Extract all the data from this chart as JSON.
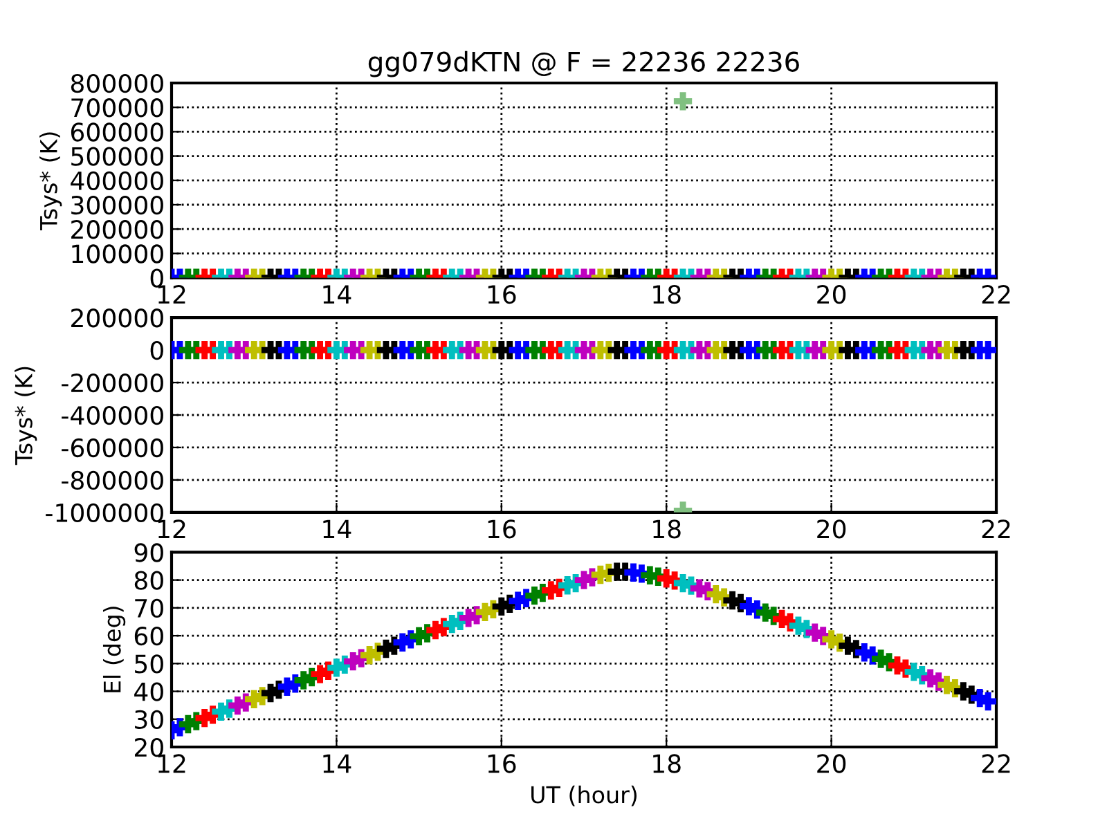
{
  "chart_data": [
    {
      "type": "scatter",
      "title": "gg079dKTN @ F = 22236 22236",
      "ylabel": "Tsys* (K)",
      "xlim": [
        12,
        22
      ],
      "xticks": [
        12,
        14,
        16,
        18,
        20,
        22
      ],
      "ylim": [
        0,
        800000
      ],
      "yticks": [
        0,
        100000,
        200000,
        300000,
        400000,
        500000,
        600000,
        700000,
        800000
      ],
      "grid": true,
      "marker": "cross",
      "series": [
        {
          "x": [
            12.0,
            12.1,
            12.2,
            12.3,
            12.4,
            12.5,
            12.6,
            12.7,
            12.8,
            12.9,
            13.0,
            13.1,
            13.2,
            13.3,
            13.4,
            13.5,
            13.6,
            13.7,
            13.8,
            13.9,
            14.0,
            14.1,
            14.2,
            14.3,
            14.4,
            14.5,
            14.6,
            14.7,
            14.8,
            14.9,
            15.0,
            15.1,
            15.2,
            15.3,
            15.4,
            15.5,
            15.6,
            15.7,
            15.8,
            15.9,
            16.0,
            16.1,
            16.2,
            16.3,
            16.4,
            16.5,
            16.6,
            16.7,
            16.8,
            16.9,
            17.0,
            17.1,
            17.2,
            17.3,
            17.4,
            17.5,
            17.6,
            17.7,
            17.8,
            17.9,
            18.0,
            18.1,
            18.2,
            18.3,
            18.4,
            18.5,
            18.6,
            18.7,
            18.8,
            18.9,
            19.0,
            19.1,
            19.2,
            19.3,
            19.4,
            19.5,
            19.6,
            19.7,
            19.8,
            19.9,
            20.0,
            20.1,
            20.2,
            20.3,
            20.4,
            20.5,
            20.6,
            20.7,
            20.8,
            20.9,
            21.0,
            21.1,
            21.2,
            21.3,
            21.4,
            21.5,
            21.6,
            21.7,
            21.8,
            21.9
          ],
          "values": [
            0,
            0,
            0,
            0,
            0,
            0,
            0,
            0,
            0,
            0,
            0,
            0,
            0,
            0,
            0,
            0,
            0,
            0,
            0,
            0,
            0,
            0,
            0,
            0,
            0,
            0,
            0,
            0,
            0,
            0,
            0,
            0,
            0,
            0,
            0,
            0,
            0,
            0,
            0,
            0,
            0,
            0,
            0,
            0,
            0,
            0,
            0,
            0,
            0,
            0,
            0,
            0,
            0,
            0,
            0,
            0,
            0,
            0,
            0,
            0,
            0,
            0,
            0,
            0,
            0,
            0,
            0,
            0,
            0,
            0,
            0,
            0,
            0,
            0,
            0,
            0,
            0,
            0,
            0,
            0,
            0,
            0,
            0,
            0,
            0,
            0,
            0,
            0,
            0,
            0,
            0,
            0,
            0,
            0,
            0,
            0,
            0,
            0,
            0,
            0
          ],
          "colors": [
            "#0000ff",
            "#0000ff",
            "#008000",
            "#008000",
            "#ff0000",
            "#ff0000",
            "#00bfbf",
            "#00bfbf",
            "#bf00bf",
            "#bf00bf",
            "#bfbf00",
            "#bfbf00",
            "#000000",
            "#000000",
            "#0000ff",
            "#0000ff",
            "#008000",
            "#008000",
            "#ff0000",
            "#ff0000",
            "#00bfbf",
            "#00bfbf",
            "#bf00bf",
            "#bf00bf",
            "#bfbf00",
            "#bfbf00",
            "#000000",
            "#000000",
            "#0000ff",
            "#0000ff",
            "#008000",
            "#008000",
            "#ff0000",
            "#ff0000",
            "#00bfbf",
            "#00bfbf",
            "#bf00bf",
            "#bf00bf",
            "#bfbf00",
            "#bfbf00",
            "#000000",
            "#000000",
            "#0000ff",
            "#0000ff",
            "#008000",
            "#008000",
            "#ff0000",
            "#ff0000",
            "#00bfbf",
            "#00bfbf",
            "#bf00bf",
            "#bf00bf",
            "#bfbf00",
            "#bfbf00",
            "#000000",
            "#000000",
            "#0000ff",
            "#0000ff",
            "#008000",
            "#008000",
            "#ff0000",
            "#ff0000",
            "#00bfbf",
            "#00bfbf",
            "#bf00bf",
            "#bf00bf",
            "#bfbf00",
            "#bfbf00",
            "#000000",
            "#000000",
            "#0000ff",
            "#0000ff",
            "#008000",
            "#008000",
            "#ff0000",
            "#ff0000",
            "#00bfbf",
            "#00bfbf",
            "#bf00bf",
            "#bf00bf",
            "#bfbf00",
            "#bfbf00",
            "#000000",
            "#000000",
            "#0000ff",
            "#0000ff",
            "#008000",
            "#008000",
            "#ff0000",
            "#ff0000",
            "#00bfbf",
            "#00bfbf",
            "#bf00bf",
            "#bf00bf",
            "#bfbf00",
            "#bfbf00",
            "#000000",
            "#000000",
            "#0000ff",
            "#0000ff"
          ]
        },
        {
          "x": [
            18.2
          ],
          "values": [
            725000
          ],
          "color": "#80c080"
        }
      ]
    },
    {
      "type": "scatter",
      "ylabel": "Tsys* (K)",
      "xlim": [
        12,
        22
      ],
      "xticks": [
        12,
        14,
        16,
        18,
        20,
        22
      ],
      "ylim": [
        -1000000,
        200000
      ],
      "yticks": [
        -1000000,
        -800000,
        -600000,
        -400000,
        -200000,
        0,
        200000
      ],
      "grid": true,
      "marker": "cross",
      "series": [
        {
          "x": [
            12.0,
            12.1,
            12.2,
            12.3,
            12.4,
            12.5,
            12.6,
            12.7,
            12.8,
            12.9,
            13.0,
            13.1,
            13.2,
            13.3,
            13.4,
            13.5,
            13.6,
            13.7,
            13.8,
            13.9,
            14.0,
            14.1,
            14.2,
            14.3,
            14.4,
            14.5,
            14.6,
            14.7,
            14.8,
            14.9,
            15.0,
            15.1,
            15.2,
            15.3,
            15.4,
            15.5,
            15.6,
            15.7,
            15.8,
            15.9,
            16.0,
            16.1,
            16.2,
            16.3,
            16.4,
            16.5,
            16.6,
            16.7,
            16.8,
            16.9,
            17.0,
            17.1,
            17.2,
            17.3,
            17.4,
            17.5,
            17.6,
            17.7,
            17.8,
            17.9,
            18.0,
            18.1,
            18.2,
            18.3,
            18.4,
            18.5,
            18.6,
            18.7,
            18.8,
            18.9,
            19.0,
            19.1,
            19.2,
            19.3,
            19.4,
            19.5,
            19.6,
            19.7,
            19.8,
            19.9,
            20.0,
            20.1,
            20.2,
            20.3,
            20.4,
            20.5,
            20.6,
            20.7,
            20.8,
            20.9,
            21.0,
            21.1,
            21.2,
            21.3,
            21.4,
            21.5,
            21.6,
            21.7,
            21.8,
            21.9
          ],
          "values": [
            0,
            0,
            0,
            0,
            0,
            0,
            0,
            0,
            0,
            0,
            0,
            0,
            0,
            0,
            0,
            0,
            0,
            0,
            0,
            0,
            0,
            0,
            0,
            0,
            0,
            0,
            0,
            0,
            0,
            0,
            0,
            0,
            0,
            0,
            0,
            0,
            0,
            0,
            0,
            0,
            0,
            0,
            0,
            0,
            0,
            0,
            0,
            0,
            0,
            0,
            0,
            0,
            0,
            0,
            0,
            0,
            0,
            0,
            0,
            0,
            0,
            0,
            0,
            0,
            0,
            0,
            0,
            0,
            0,
            0,
            0,
            0,
            0,
            0,
            0,
            0,
            0,
            0,
            0,
            0,
            0,
            0,
            0,
            0,
            0,
            0,
            0,
            0,
            0,
            0,
            0,
            0,
            0,
            0,
            0,
            0,
            0,
            0,
            0,
            0
          ],
          "colors": [
            "#0000ff",
            "#0000ff",
            "#008000",
            "#008000",
            "#ff0000",
            "#ff0000",
            "#00bfbf",
            "#00bfbf",
            "#bf00bf",
            "#bf00bf",
            "#bfbf00",
            "#bfbf00",
            "#000000",
            "#000000",
            "#0000ff",
            "#0000ff",
            "#008000",
            "#008000",
            "#ff0000",
            "#ff0000",
            "#00bfbf",
            "#00bfbf",
            "#bf00bf",
            "#bf00bf",
            "#bfbf00",
            "#bfbf00",
            "#000000",
            "#000000",
            "#0000ff",
            "#0000ff",
            "#008000",
            "#008000",
            "#ff0000",
            "#ff0000",
            "#00bfbf",
            "#00bfbf",
            "#bf00bf",
            "#bf00bf",
            "#bfbf00",
            "#bfbf00",
            "#000000",
            "#000000",
            "#0000ff",
            "#0000ff",
            "#008000",
            "#008000",
            "#ff0000",
            "#ff0000",
            "#00bfbf",
            "#00bfbf",
            "#bf00bf",
            "#bf00bf",
            "#bfbf00",
            "#bfbf00",
            "#000000",
            "#000000",
            "#0000ff",
            "#0000ff",
            "#008000",
            "#008000",
            "#ff0000",
            "#ff0000",
            "#00bfbf",
            "#00bfbf",
            "#bf00bf",
            "#bf00bf",
            "#bfbf00",
            "#bfbf00",
            "#000000",
            "#000000",
            "#0000ff",
            "#0000ff",
            "#008000",
            "#008000",
            "#ff0000",
            "#ff0000",
            "#00bfbf",
            "#00bfbf",
            "#bf00bf",
            "#bf00bf",
            "#bfbf00",
            "#bfbf00",
            "#000000",
            "#000000",
            "#0000ff",
            "#0000ff",
            "#008000",
            "#008000",
            "#ff0000",
            "#ff0000",
            "#00bfbf",
            "#00bfbf",
            "#bf00bf",
            "#bf00bf",
            "#bfbf00",
            "#bfbf00",
            "#000000",
            "#000000",
            "#0000ff",
            "#0000ff"
          ]
        },
        {
          "x": [
            18.2
          ],
          "values": [
            -990000
          ],
          "color": "#80c080"
        }
      ]
    },
    {
      "type": "scatter",
      "xlabel": "UT (hour)",
      "ylabel": "El (deg)",
      "xlim": [
        12,
        22
      ],
      "xticks": [
        12,
        14,
        16,
        18,
        20,
        22
      ],
      "ylim": [
        20,
        90
      ],
      "yticks": [
        20,
        30,
        40,
        50,
        60,
        70,
        80,
        90
      ],
      "grid": true,
      "marker": "cross",
      "series": [
        {
          "x": [
            12.0,
            12.1,
            12.2,
            12.3,
            12.4,
            12.5,
            12.6,
            12.7,
            12.8,
            12.9,
            13.0,
            13.1,
            13.2,
            13.3,
            13.4,
            13.5,
            13.6,
            13.7,
            13.8,
            13.9,
            14.0,
            14.1,
            14.2,
            14.3,
            14.4,
            14.5,
            14.6,
            14.7,
            14.8,
            14.9,
            15.0,
            15.1,
            15.2,
            15.3,
            15.4,
            15.5,
            15.6,
            15.7,
            15.8,
            15.9,
            16.0,
            16.1,
            16.2,
            16.3,
            16.4,
            16.5,
            16.6,
            16.7,
            16.8,
            16.9,
            17.0,
            17.1,
            17.2,
            17.3,
            17.4,
            17.5,
            17.6,
            17.7,
            17.8,
            17.9,
            18.0,
            18.1,
            18.2,
            18.3,
            18.4,
            18.5,
            18.6,
            18.7,
            18.8,
            18.9,
            19.0,
            19.1,
            19.2,
            19.3,
            19.4,
            19.5,
            19.6,
            19.7,
            19.8,
            19.9,
            20.0,
            20.1,
            20.2,
            20.3,
            20.4,
            20.5,
            20.6,
            20.7,
            20.8,
            20.9,
            21.0,
            21.1,
            21.2,
            21.3,
            21.4,
            21.5,
            21.6,
            21.7,
            21.8,
            21.9
          ],
          "values": [
            26.0,
            27.1,
            28.2,
            29.3,
            30.4,
            31.6,
            32.7,
            33.8,
            34.9,
            36.0,
            37.2,
            38.3,
            39.4,
            40.6,
            41.7,
            42.8,
            44.0,
            45.1,
            46.2,
            47.4,
            48.5,
            49.6,
            50.8,
            51.9,
            53.0,
            54.2,
            55.3,
            56.4,
            57.6,
            58.7,
            59.8,
            60.9,
            62.0,
            63.1,
            64.2,
            65.3,
            66.4,
            67.4,
            68.5,
            69.5,
            70.5,
            71.5,
            72.5,
            73.5,
            74.4,
            75.4,
            76.3,
            77.2,
            78.1,
            78.9,
            80.0,
            81.0,
            81.9,
            82.6,
            83.0,
            83.0,
            82.7,
            82.3,
            81.7,
            81.2,
            80.6,
            79.8,
            78.9,
            78.0,
            77.0,
            76.0,
            74.9,
            73.8,
            72.7,
            71.7,
            70.6,
            69.4,
            68.3,
            67.1,
            66.0,
            64.8,
            63.6,
            62.4,
            61.1,
            59.9,
            58.7,
            57.5,
            56.4,
            55.2,
            54.0,
            52.9,
            51.7,
            50.5,
            49.3,
            48.2,
            47.0,
            45.8,
            44.7,
            43.5,
            42.3,
            41.1,
            40.0,
            38.8,
            37.6,
            36.4
          ],
          "colors": [
            "#0000ff",
            "#0000ff",
            "#008000",
            "#008000",
            "#ff0000",
            "#ff0000",
            "#00bfbf",
            "#00bfbf",
            "#bf00bf",
            "#bf00bf",
            "#bfbf00",
            "#bfbf00",
            "#000000",
            "#000000",
            "#0000ff",
            "#0000ff",
            "#008000",
            "#008000",
            "#ff0000",
            "#ff0000",
            "#00bfbf",
            "#00bfbf",
            "#bf00bf",
            "#bf00bf",
            "#bfbf00",
            "#bfbf00",
            "#000000",
            "#000000",
            "#0000ff",
            "#0000ff",
            "#008000",
            "#008000",
            "#ff0000",
            "#ff0000",
            "#00bfbf",
            "#00bfbf",
            "#bf00bf",
            "#bf00bf",
            "#bfbf00",
            "#bfbf00",
            "#000000",
            "#000000",
            "#0000ff",
            "#0000ff",
            "#008000",
            "#008000",
            "#ff0000",
            "#ff0000",
            "#00bfbf",
            "#00bfbf",
            "#bf00bf",
            "#bf00bf",
            "#bfbf00",
            "#bfbf00",
            "#000000",
            "#000000",
            "#0000ff",
            "#0000ff",
            "#008000",
            "#008000",
            "#ff0000",
            "#ff0000",
            "#00bfbf",
            "#00bfbf",
            "#bf00bf",
            "#bf00bf",
            "#bfbf00",
            "#bfbf00",
            "#000000",
            "#000000",
            "#0000ff",
            "#0000ff",
            "#008000",
            "#008000",
            "#ff0000",
            "#ff0000",
            "#00bfbf",
            "#00bfbf",
            "#bf00bf",
            "#bf00bf",
            "#bfbf00",
            "#bfbf00",
            "#000000",
            "#000000",
            "#0000ff",
            "#0000ff",
            "#008000",
            "#008000",
            "#ff0000",
            "#ff0000",
            "#00bfbf",
            "#00bfbf",
            "#bf00bf",
            "#bf00bf",
            "#bfbf00",
            "#bfbf00",
            "#000000",
            "#000000",
            "#0000ff",
            "#0000ff"
          ]
        }
      ]
    }
  ]
}
